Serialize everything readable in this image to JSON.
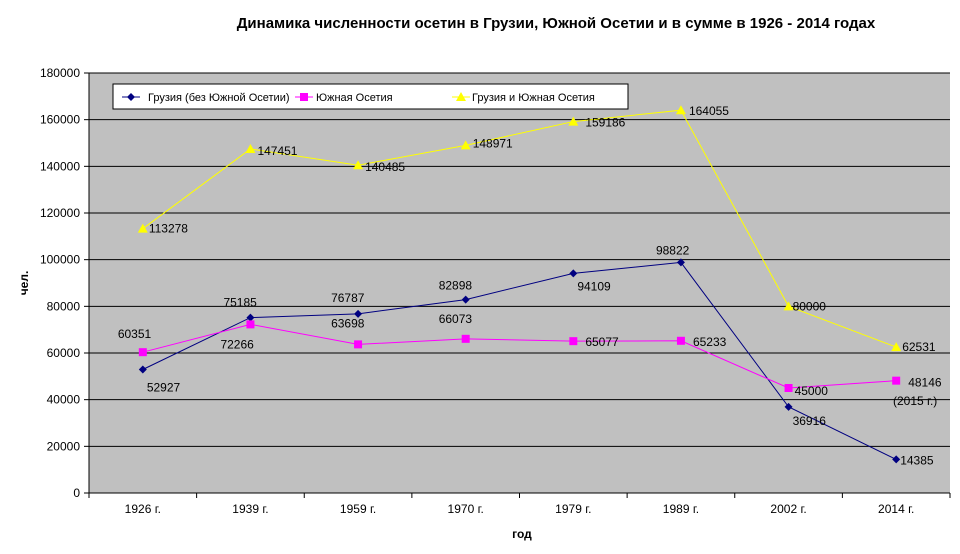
{
  "chart_data": {
    "type": "line",
    "title": "Динамика численности осетин в Грузии, Южной Осетии и в сумме в 1926 - 2014 годах",
    "xlabel": "год",
    "ylabel": "чел.",
    "ylim": [
      0,
      180000
    ],
    "yticks": [
      "0",
      "20000",
      "40000",
      "60000",
      "80000",
      "100000",
      "120000",
      "140000",
      "160000",
      "180000"
    ],
    "categories": [
      "1926 г.",
      "1939 г.",
      "1959 г.",
      "1970 г.",
      "1979 г.",
      "1989 г.",
      "2002 г.",
      "2014 г."
    ],
    "grid": true,
    "legend_position": "top-left",
    "plot_background": "#c0c0c0",
    "series": [
      {
        "name": "Грузия (без Южной Осетии)",
        "color": "#000080",
        "marker": "diamond",
        "values": [
          52927,
          75185,
          76787,
          82898,
          94109,
          98822,
          36916,
          14385
        ],
        "labels": [
          "52927",
          "75185",
          "76787",
          "82898",
          "94109",
          "98822",
          "36916",
          "14385"
        ]
      },
      {
        "name": "Южная Осетия",
        "color": "#ff00ff",
        "marker": "square",
        "values": [
          60351,
          72266,
          63698,
          66073,
          65077,
          65233,
          45000,
          48146
        ],
        "labels": [
          "60351",
          "72266",
          "63698",
          "66073",
          "65077",
          "65233",
          "45000",
          "48146"
        ]
      },
      {
        "name": "Грузия и Южная Осетия",
        "color": "#ffff00",
        "marker": "triangle",
        "values": [
          113278,
          147451,
          140485,
          148971,
          159186,
          164055,
          80000,
          62531
        ],
        "labels": [
          "113278",
          "147451",
          "140485",
          "148971",
          "159186",
          "164055",
          "80000",
          "62531"
        ]
      }
    ],
    "annotations": [
      {
        "text": "(2015 г.)",
        "color": "#ff00ff"
      }
    ]
  }
}
